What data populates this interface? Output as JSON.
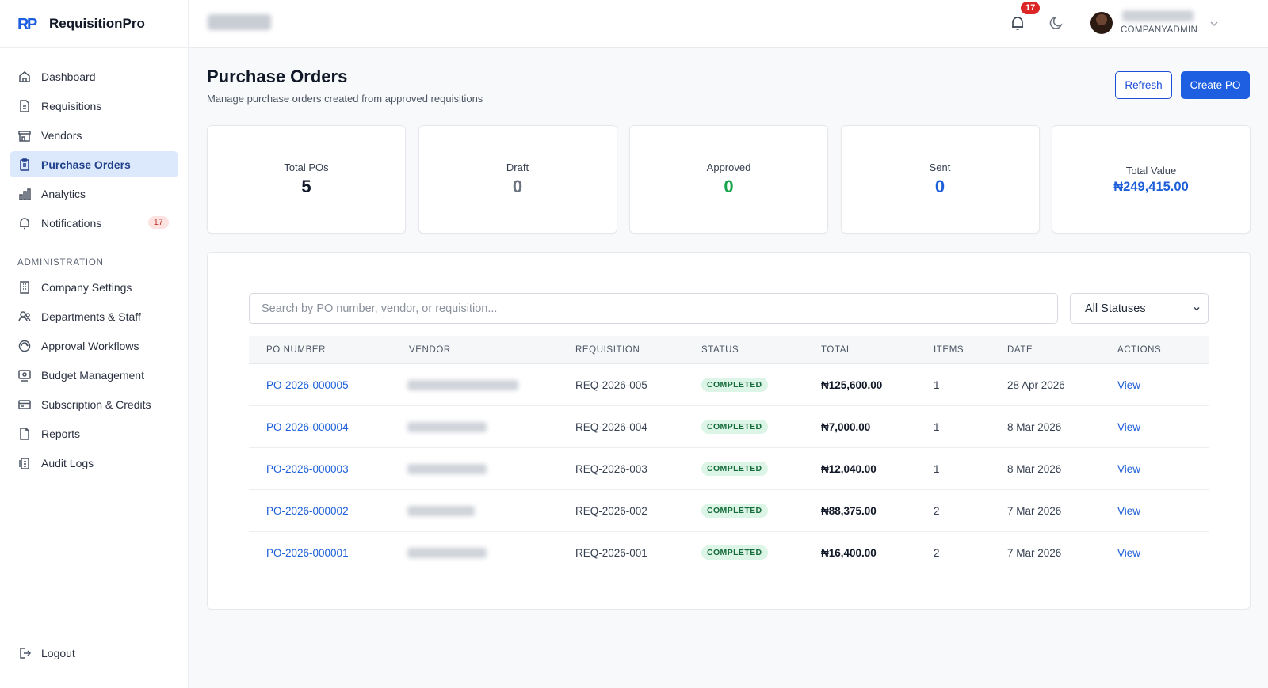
{
  "app": {
    "name": "RequisitionPro"
  },
  "sidebar": {
    "items": [
      {
        "label": "Dashboard",
        "icon": "home-icon"
      },
      {
        "label": "Requisitions",
        "icon": "document-icon"
      },
      {
        "label": "Vendors",
        "icon": "store-icon"
      },
      {
        "label": "Purchase Orders",
        "icon": "clipboard-icon",
        "active": true
      },
      {
        "label": "Analytics",
        "icon": "bar-chart-icon"
      },
      {
        "label": "Notifications",
        "icon": "bell-icon",
        "badge": "17"
      }
    ],
    "admin_title": "ADMINISTRATION",
    "admin_items": [
      {
        "label": "Company Settings",
        "icon": "building-icon"
      },
      {
        "label": "Departments & Staff",
        "icon": "users-icon"
      },
      {
        "label": "Approval Workflows",
        "icon": "workflow-icon"
      },
      {
        "label": "Budget Management",
        "icon": "budget-icon"
      },
      {
        "label": "Subscription & Credits",
        "icon": "credit-card-icon"
      },
      {
        "label": "Reports",
        "icon": "report-icon"
      },
      {
        "label": "Audit Logs",
        "icon": "audit-icon"
      }
    ],
    "logout": "Logout"
  },
  "header": {
    "notification_count": "17",
    "user_role": "COMPANYADMIN"
  },
  "page": {
    "title": "Purchase Orders",
    "subtitle": "Manage purchase orders created from approved requisitions",
    "refresh_label": "Refresh",
    "create_label": "Create PO"
  },
  "stats": [
    {
      "label": "Total POs",
      "value": "5",
      "color": "#111827"
    },
    {
      "label": "Draft",
      "value": "0",
      "color": "#6b7280"
    },
    {
      "label": "Approved",
      "value": "0",
      "color": "#16a34a"
    },
    {
      "label": "Sent",
      "value": "0",
      "color": "#1d5fd8"
    },
    {
      "label": "Total Value",
      "value": "₦249,415.00",
      "color": "#1d5fd8"
    }
  ],
  "filters": {
    "search_placeholder": "Search by PO number, vendor, or requisition...",
    "status_selected": "All Statuses"
  },
  "table": {
    "columns": [
      "PO NUMBER",
      "VENDOR",
      "REQUISITION",
      "STATUS",
      "TOTAL",
      "ITEMS",
      "DATE",
      "ACTIONS"
    ],
    "rows": [
      {
        "po": "PO-2026-000005",
        "requisition": "REQ-2026-005",
        "status": "COMPLETED",
        "total": "₦125,600.00",
        "items": "1",
        "date": "28 Apr 2026",
        "action": "View"
      },
      {
        "po": "PO-2026-000004",
        "requisition": "REQ-2026-004",
        "status": "COMPLETED",
        "total": "₦7,000.00",
        "items": "1",
        "date": "8 Mar 2026",
        "action": "View"
      },
      {
        "po": "PO-2026-000003",
        "requisition": "REQ-2026-003",
        "status": "COMPLETED",
        "total": "₦12,040.00",
        "items": "1",
        "date": "8 Mar 2026",
        "action": "View"
      },
      {
        "po": "PO-2026-000002",
        "requisition": "REQ-2026-002",
        "status": "COMPLETED",
        "total": "₦88,375.00",
        "items": "2",
        "date": "7 Mar 2026",
        "action": "View"
      },
      {
        "po": "PO-2026-000001",
        "requisition": "REQ-2026-001",
        "status": "COMPLETED",
        "total": "₦16,400.00",
        "items": "2",
        "date": "7 Mar 2026",
        "action": "View"
      }
    ]
  },
  "colors": {
    "accent": "#1d5fe0",
    "active_nav_bg": "#dce8fb",
    "status_green_bg": "#dcf5e7"
  }
}
